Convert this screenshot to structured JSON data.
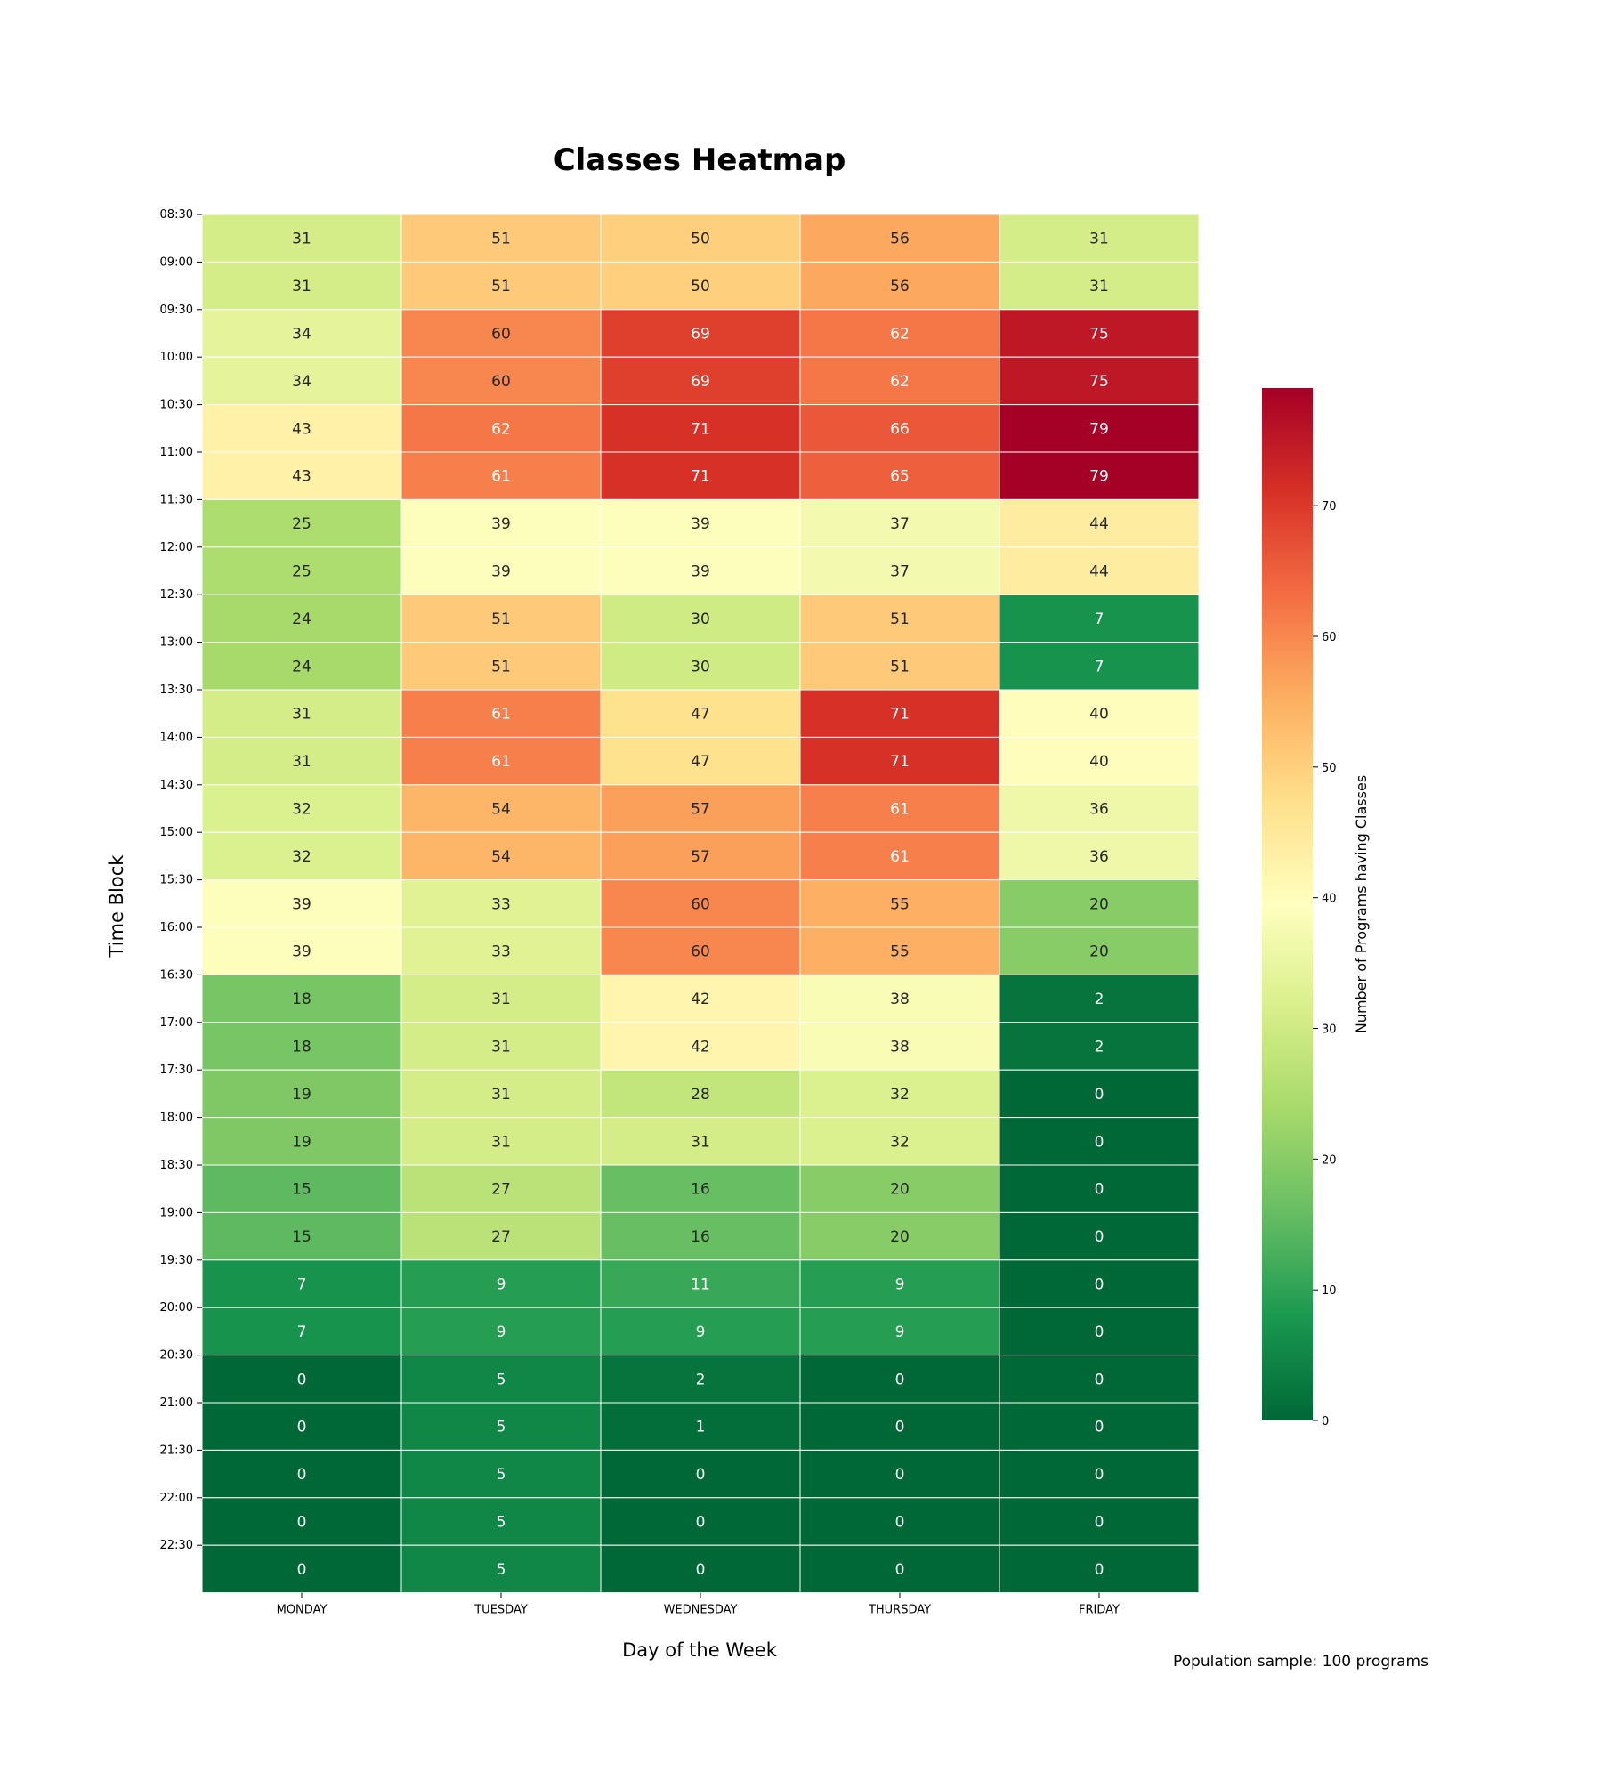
{
  "chart_data": {
    "type": "heatmap",
    "title": "Classes Heatmap",
    "xlabel": "Day of the Week",
    "ylabel": "Time Block",
    "x_categories": [
      "MONDAY",
      "TUESDAY",
      "WEDNESDAY",
      "THURSDAY",
      "FRIDAY"
    ],
    "y_tick_labels": [
      "08:30",
      "09:00",
      "09:30",
      "10:00",
      "10:30",
      "11:00",
      "11:30",
      "12:00",
      "12:30",
      "13:00",
      "13:30",
      "14:00",
      "14:30",
      "15:00",
      "15:30",
      "16:00",
      "16:30",
      "17:00",
      "17:30",
      "18:00",
      "18:30",
      "19:00",
      "19:30",
      "20:00",
      "20:30",
      "21:00",
      "21:30",
      "22:00",
      "22:30"
    ],
    "values": [
      [
        31,
        51,
        50,
        56,
        31
      ],
      [
        31,
        51,
        50,
        56,
        31
      ],
      [
        34,
        60,
        69,
        62,
        75
      ],
      [
        34,
        60,
        69,
        62,
        75
      ],
      [
        43,
        62,
        71,
        66,
        79
      ],
      [
        43,
        61,
        71,
        65,
        79
      ],
      [
        25,
        39,
        39,
        37,
        44
      ],
      [
        25,
        39,
        39,
        37,
        44
      ],
      [
        24,
        51,
        30,
        51,
        7
      ],
      [
        24,
        51,
        30,
        51,
        7
      ],
      [
        31,
        61,
        47,
        71,
        40
      ],
      [
        31,
        61,
        47,
        71,
        40
      ],
      [
        32,
        54,
        57,
        61,
        36
      ],
      [
        32,
        54,
        57,
        61,
        36
      ],
      [
        39,
        33,
        60,
        55,
        20
      ],
      [
        39,
        33,
        60,
        55,
        20
      ],
      [
        18,
        31,
        42,
        38,
        2
      ],
      [
        18,
        31,
        42,
        38,
        2
      ],
      [
        19,
        31,
        28,
        32,
        0
      ],
      [
        19,
        31,
        31,
        32,
        0
      ],
      [
        15,
        27,
        16,
        20,
        0
      ],
      [
        15,
        27,
        16,
        20,
        0
      ],
      [
        7,
        9,
        11,
        9,
        0
      ],
      [
        7,
        9,
        9,
        9,
        0
      ],
      [
        0,
        5,
        2,
        0,
        0
      ],
      [
        0,
        5,
        1,
        0,
        0
      ],
      [
        0,
        5,
        0,
        0,
        0
      ],
      [
        0,
        5,
        0,
        0,
        0
      ],
      [
        0,
        5,
        0,
        0,
        0
      ]
    ],
    "colormap": "RdYlGn_r",
    "vmin": 0,
    "vmax": 79,
    "colorbar": {
      "label": "Number of Programs having Classes",
      "ticks": [
        0,
        10,
        20,
        30,
        40,
        50,
        60,
        70
      ]
    },
    "annotated": true,
    "legend_position": "right"
  },
  "footnote": "Population sample: 100 programs"
}
